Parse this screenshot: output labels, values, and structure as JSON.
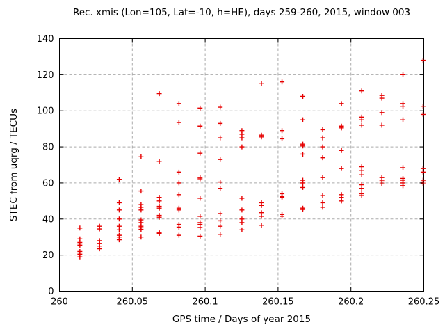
{
  "chart_data": {
    "type": "scatter",
    "title": "Rec. xmis (Lon=105, Lat=-10, h=HE), days 259-260, 2015, window 003",
    "xlabel": "GPS time / Days of year 2015",
    "ylabel": "STEC from uqrg / TECUs",
    "xlim": [
      260,
      260.25
    ],
    "ylim": [
      0,
      140
    ],
    "x_ticks": [
      260,
      260.05,
      260.1,
      260.15,
      260.2,
      260.25
    ],
    "x_tick_labels": [
      "260",
      "260.05",
      "260.1",
      "260.15",
      "260.2",
      "260.25"
    ],
    "y_ticks": [
      0,
      20,
      40,
      60,
      80,
      100,
      120,
      140
    ],
    "y_tick_labels": [
      "0",
      "20",
      "40",
      "60",
      "80",
      "100",
      "120",
      "140"
    ],
    "grid": true,
    "legend": "none",
    "marker": "plus",
    "marker_color": "#e60000",
    "grid_color": "#ababab",
    "border_color": "#000000",
    "series": [
      {
        "name": "STEC from uqrg",
        "points": [
          [
            260.014,
            35
          ],
          [
            260.014,
            29
          ],
          [
            260.014,
            27
          ],
          [
            260.014,
            25.5
          ],
          [
            260.014,
            22
          ],
          [
            260.014,
            20.5
          ],
          [
            260.014,
            19
          ],
          [
            260.0275,
            36
          ],
          [
            260.0275,
            34.5
          ],
          [
            260.0275,
            28
          ],
          [
            260.0275,
            26.5
          ],
          [
            260.0275,
            25
          ],
          [
            260.0275,
            23.5
          ],
          [
            260.041,
            62
          ],
          [
            260.041,
            49
          ],
          [
            260.041,
            45
          ],
          [
            260.041,
            40
          ],
          [
            260.041,
            36
          ],
          [
            260.041,
            34
          ],
          [
            260.041,
            31
          ],
          [
            260.041,
            30
          ],
          [
            260.041,
            28.5
          ],
          [
            260.056,
            74.5
          ],
          [
            260.056,
            55.5
          ],
          [
            260.056,
            48
          ],
          [
            260.056,
            46.5
          ],
          [
            260.056,
            45
          ],
          [
            260.056,
            39.5
          ],
          [
            260.056,
            38
          ],
          [
            260.056,
            36
          ],
          [
            260.056,
            35.2
          ],
          [
            260.056,
            34.3
          ],
          [
            260.056,
            30
          ],
          [
            260.0685,
            109.5
          ],
          [
            260.0685,
            72
          ],
          [
            260.0685,
            52
          ],
          [
            260.0685,
            50
          ],
          [
            260.0685,
            47
          ],
          [
            260.0685,
            46
          ],
          [
            260.0685,
            42
          ],
          [
            260.0685,
            41
          ],
          [
            260.0685,
            32.5
          ],
          [
            260.0685,
            32
          ],
          [
            260.082,
            104
          ],
          [
            260.082,
            93.5
          ],
          [
            260.082,
            66
          ],
          [
            260.082,
            60
          ],
          [
            260.082,
            53.5
          ],
          [
            260.082,
            46
          ],
          [
            260.082,
            45
          ],
          [
            260.082,
            37
          ],
          [
            260.082,
            35.5
          ],
          [
            260.082,
            31
          ],
          [
            260.0965,
            101.5
          ],
          [
            260.0965,
            91.5
          ],
          [
            260.0965,
            76.5
          ],
          [
            260.0965,
            63
          ],
          [
            260.0965,
            62.3
          ],
          [
            260.0965,
            51.5
          ],
          [
            260.0965,
            41.5
          ],
          [
            260.0965,
            38
          ],
          [
            260.0965,
            37
          ],
          [
            260.0965,
            35.3
          ],
          [
            260.0965,
            30.5
          ],
          [
            260.1103,
            102
          ],
          [
            260.1103,
            93
          ],
          [
            260.1103,
            85
          ],
          [
            260.1103,
            73
          ],
          [
            260.1103,
            60.5
          ],
          [
            260.1103,
            57
          ],
          [
            260.1103,
            43
          ],
          [
            260.1103,
            39
          ],
          [
            260.1103,
            36
          ],
          [
            260.1103,
            31.5
          ],
          [
            260.1252,
            89
          ],
          [
            260.1252,
            87
          ],
          [
            260.1252,
            85
          ],
          [
            260.1252,
            80
          ],
          [
            260.1252,
            51.5
          ],
          [
            260.1252,
            45
          ],
          [
            260.1252,
            40
          ],
          [
            260.1252,
            38
          ],
          [
            260.1252,
            34
          ],
          [
            260.1386,
            115
          ],
          [
            260.1386,
            86.5
          ],
          [
            260.1386,
            85.5
          ],
          [
            260.1386,
            49
          ],
          [
            260.1386,
            47.5
          ],
          [
            260.1386,
            43.5
          ],
          [
            260.1386,
            41.5
          ],
          [
            260.1386,
            36.5
          ],
          [
            260.1527,
            116
          ],
          [
            260.1527,
            89
          ],
          [
            260.1527,
            84.5
          ],
          [
            260.1527,
            54
          ],
          [
            260.1527,
            52.5
          ],
          [
            260.1527,
            52
          ],
          [
            260.1527,
            42.5
          ],
          [
            260.1527,
            41.5
          ],
          [
            260.167,
            108
          ],
          [
            260.167,
            95
          ],
          [
            260.167,
            81.5
          ],
          [
            260.167,
            80.5
          ],
          [
            260.167,
            76
          ],
          [
            260.167,
            61.5
          ],
          [
            260.167,
            60
          ],
          [
            260.167,
            57.5
          ],
          [
            260.167,
            46
          ],
          [
            260.167,
            45.3
          ],
          [
            260.1806,
            89.5
          ],
          [
            260.1806,
            85
          ],
          [
            260.1806,
            80
          ],
          [
            260.1806,
            74
          ],
          [
            260.1806,
            63
          ],
          [
            260.1806,
            53
          ],
          [
            260.1806,
            49
          ],
          [
            260.1806,
            46.5
          ],
          [
            260.1935,
            104
          ],
          [
            260.1935,
            91.5
          ],
          [
            260.1935,
            90.5
          ],
          [
            260.1935,
            78
          ],
          [
            260.1935,
            68
          ],
          [
            260.1935,
            53.5
          ],
          [
            260.1935,
            52
          ],
          [
            260.1935,
            50
          ],
          [
            260.2074,
            111
          ],
          [
            260.2074,
            96.5
          ],
          [
            260.2074,
            95
          ],
          [
            260.2074,
            92
          ],
          [
            260.2074,
            69
          ],
          [
            260.2074,
            67
          ],
          [
            260.2074,
            64.5
          ],
          [
            260.2074,
            59
          ],
          [
            260.2074,
            57
          ],
          [
            260.2074,
            54
          ],
          [
            260.2074,
            53
          ],
          [
            260.2212,
            108.5
          ],
          [
            260.2212,
            107
          ],
          [
            260.2212,
            99
          ],
          [
            260.2212,
            92
          ],
          [
            260.2212,
            63
          ],
          [
            260.2212,
            61.5
          ],
          [
            260.2212,
            60.5
          ],
          [
            260.2212,
            59.5
          ],
          [
            260.2357,
            120
          ],
          [
            260.2357,
            104
          ],
          [
            260.2357,
            102.5
          ],
          [
            260.2357,
            95
          ],
          [
            260.2357,
            68.5
          ],
          [
            260.2357,
            62.5
          ],
          [
            260.2357,
            61.5
          ],
          [
            260.2357,
            60
          ],
          [
            260.2357,
            58.5
          ],
          [
            260.2495,
            128
          ],
          [
            260.2495,
            102.5
          ],
          [
            260.2495,
            98
          ],
          [
            260.2495,
            68
          ],
          [
            260.2495,
            66
          ],
          [
            260.2495,
            61.5
          ],
          [
            260.2495,
            60.5
          ],
          [
            260.2495,
            59.5
          ]
        ]
      }
    ]
  }
}
